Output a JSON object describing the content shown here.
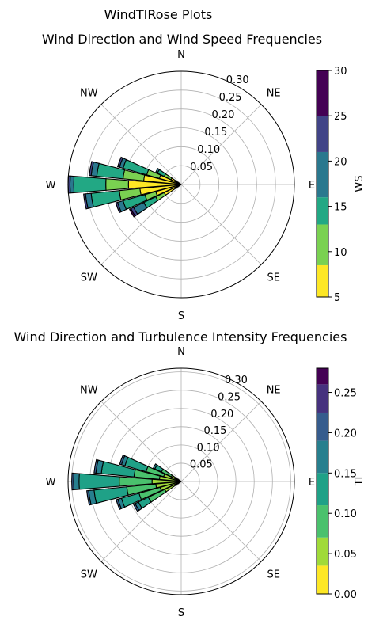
{
  "figure": {
    "suptitle": "WindTIRose Plots"
  },
  "chart_data": [
    {
      "type": "polar-bar",
      "title": "Wind Direction and Wind Speed Frequencies",
      "direction_labels": [
        "N",
        "NE",
        "E",
        "SE",
        "S",
        "SW",
        "W",
        "NW"
      ],
      "radial_ticks": [
        0.05,
        0.1,
        0.15,
        0.2,
        0.25,
        0.3
      ],
      "radial_tick_labels": [
        "0.05",
        "0.10",
        "0.15",
        "0.20",
        "0.25",
        "0.30"
      ],
      "rlim": [
        0,
        0.3
      ],
      "grid": true,
      "sector_width_deg": 10,
      "colorbar": {
        "label": "WS",
        "levels": [
          5,
          10,
          15,
          20,
          25,
          30
        ],
        "tick_labels": [
          "5",
          "10",
          "15",
          "20",
          "25",
          "30"
        ],
        "boundaries": [
          5,
          8.5,
          13,
          16,
          21,
          25,
          30
        ],
        "colors": [
          "#fde725",
          "#7ad151",
          "#22a884",
          "#2a788e",
          "#414487",
          "#440154"
        ]
      },
      "sectors": [
        {
          "direction_deg": 240,
          "bin_tops": [
            0.05,
            0.075,
            0.11,
            0.14,
            0.148,
            0.152
          ]
        },
        {
          "direction_deg": 250,
          "bin_tops": [
            0.07,
            0.1,
            0.16,
            0.175,
            0.18
          ]
        },
        {
          "direction_deg": 260,
          "bin_tops": [
            0.11,
            0.165,
            0.24,
            0.255,
            0.26
          ]
        },
        {
          "direction_deg": 270,
          "bin_tops": [
            0.14,
            0.2,
            0.285,
            0.295,
            0.3
          ]
        },
        {
          "direction_deg": 280,
          "bin_tops": [
            0.1,
            0.155,
            0.225,
            0.24,
            0.245
          ]
        },
        {
          "direction_deg": 290,
          "bin_tops": [
            0.06,
            0.095,
            0.16,
            0.17,
            0.175
          ]
        },
        {
          "direction_deg": 300,
          "bin_tops": [
            0.03,
            0.05,
            0.07,
            0.075
          ]
        }
      ]
    },
    {
      "type": "polar-bar",
      "title": "Wind Direction and Turbulence Intensity Frequencies",
      "direction_labels": [
        "N",
        "NE",
        "E",
        "SE",
        "S",
        "SW",
        "W",
        "NW"
      ],
      "radial_ticks": [
        0.05,
        0.1,
        0.15,
        0.2,
        0.25,
        0.3
      ],
      "radial_tick_labels": [
        "0.05",
        "0.10",
        "0.15",
        "0.20",
        "0.25",
        "0.30"
      ],
      "rlim": [
        0,
        0.31
      ],
      "grid": true,
      "sector_width_deg": 10,
      "colorbar": {
        "label": "TI",
        "levels": [
          0.0,
          0.05,
          0.1,
          0.15,
          0.2,
          0.25
        ],
        "tick_labels": [
          "0.00",
          "0.05",
          "0.10",
          "0.15",
          "0.20",
          "0.25"
        ],
        "boundaries": [
          0.0,
          0.035,
          0.07,
          0.11,
          0.15,
          0.19,
          0.225,
          0.26,
          0.28
        ],
        "colors": [
          "#fde725",
          "#a0da39",
          "#4ac16d",
          "#1fa187",
          "#277f8e",
          "#365c8d",
          "#46327e",
          "#440154"
        ]
      },
      "sectors": [
        {
          "direction_deg": 240,
          "bin_tops": [
            0.01,
            0.05,
            0.1,
            0.13,
            0.14,
            0.145
          ]
        },
        {
          "direction_deg": 250,
          "bin_tops": [
            0.01,
            0.06,
            0.12,
            0.17,
            0.18,
            0.185
          ]
        },
        {
          "direction_deg": 260,
          "bin_tops": [
            0.01,
            0.07,
            0.15,
            0.24,
            0.255,
            0.26
          ]
        },
        {
          "direction_deg": 270,
          "bin_tops": [
            0.01,
            0.08,
            0.17,
            0.28,
            0.295,
            0.3
          ]
        },
        {
          "direction_deg": 280,
          "bin_tops": [
            0.01,
            0.06,
            0.13,
            0.22,
            0.235,
            0.24
          ]
        },
        {
          "direction_deg": 290,
          "bin_tops": [
            0.01,
            0.05,
            0.1,
            0.16,
            0.17,
            0.175
          ]
        },
        {
          "direction_deg": 300,
          "bin_tops": [
            0.01,
            0.03,
            0.06,
            0.08,
            0.085
          ]
        }
      ]
    }
  ]
}
